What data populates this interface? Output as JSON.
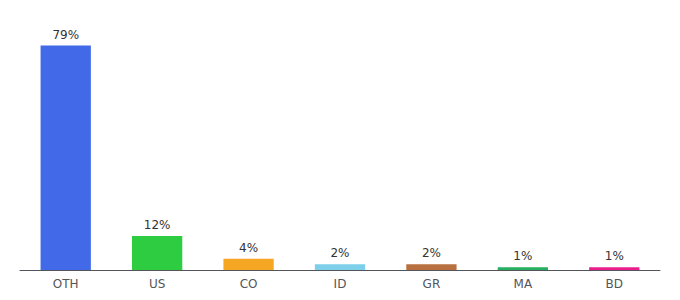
{
  "chart_data": {
    "type": "bar",
    "categories": [
      "OTH",
      "US",
      "CO",
      "ID",
      "GR",
      "MA",
      "BD"
    ],
    "values": [
      79,
      12,
      4,
      2,
      2,
      1,
      1
    ],
    "value_labels": [
      "79%",
      "12%",
      "4%",
      "2%",
      "2%",
      "1%",
      "1%"
    ],
    "colors": [
      "#4169e8",
      "#2ecc40",
      "#f5a623",
      "#7dcfea",
      "#b87040",
      "#27ae60",
      "#e91e8c"
    ],
    "ylim": [
      0,
      88
    ],
    "data_labels": true,
    "tick_labels": "x",
    "grid": false
  }
}
